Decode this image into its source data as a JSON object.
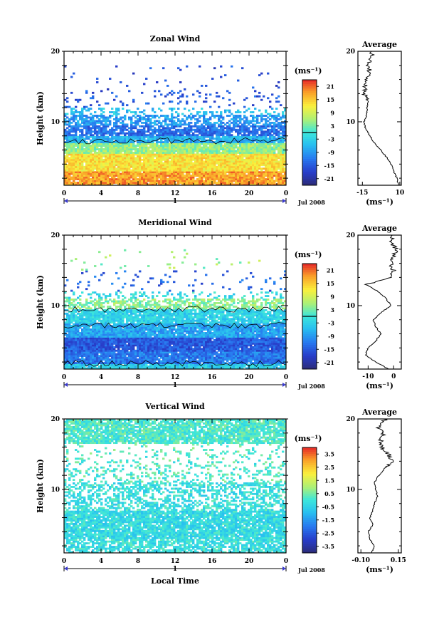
{
  "chart_data": [
    {
      "type": "heatmap",
      "title": "Zonal Wind",
      "ylabel": "Height (km)",
      "x_ticks": [
        "0",
        "4",
        "8",
        "12",
        "16",
        "20",
        "0"
      ],
      "y_tick_labels": [
        "10",
        "20"
      ],
      "xlim": [
        0,
        24
      ],
      "ylim": [
        1,
        20
      ],
      "day_label": "1",
      "date_label": "Jul 2008",
      "colorbar": {
        "unit_label": "(ms⁻¹)",
        "ticks": [
          "21",
          "15",
          "9",
          "3",
          "-3",
          "-9",
          "-15",
          "-21"
        ],
        "range": [
          -24,
          24
        ],
        "zero_line": 0
      },
      "layers": [
        {
          "y0": 1.0,
          "y1": 3.0,
          "value": 18,
          "fill": 0.97
        },
        {
          "y0": 3.0,
          "y1": 5.5,
          "value": 13,
          "fill": 0.97
        },
        {
          "y0": 5.5,
          "y1": 7.0,
          "value": 5,
          "fill": 0.95
        },
        {
          "y0": 7.0,
          "y1": 8.0,
          "value": -7,
          "fill": 0.9
        },
        {
          "y0": 8.0,
          "y1": 9.5,
          "value": -13,
          "fill": 0.8
        },
        {
          "y0": 9.5,
          "y1": 11.0,
          "value": -9,
          "fill": 0.6
        },
        {
          "y0": 11.0,
          "y1": 12.0,
          "value": -5,
          "fill": 0.3
        },
        {
          "y0": 12.0,
          "y1": 14.5,
          "value": -15,
          "fill": 0.12
        },
        {
          "y0": 14.5,
          "y1": 18.0,
          "value": -16,
          "fill": 0.03
        }
      ],
      "contour_heights": [
        7.3
      ],
      "average": {
        "title": "Average",
        "xlabel": "(ms⁻¹)",
        "x_ticks": [
          "-15",
          "10"
        ],
        "xlim": [
          -18,
          11
        ],
        "heights": [
          1,
          2,
          3,
          4,
          5,
          6,
          7,
          8,
          9,
          10,
          11,
          12,
          13,
          14,
          15,
          16,
          17,
          18,
          19,
          20
        ],
        "values": [
          9,
          8,
          6,
          4,
          1,
          -3,
          -7,
          -10,
          -13,
          -14,
          -12,
          -12,
          -11,
          -14,
          -13,
          -13,
          -10,
          -11,
          -9,
          -9
        ]
      }
    },
    {
      "type": "heatmap",
      "title": "Meridional Wind",
      "ylabel": "Height (km)",
      "x_ticks": [
        "0",
        "4",
        "8",
        "12",
        "16",
        "20",
        "0"
      ],
      "y_tick_labels": [
        "10",
        "20"
      ],
      "xlim": [
        0,
        24
      ],
      "ylim": [
        1,
        20
      ],
      "day_label": "1",
      "date_label": "Jul 2008",
      "colorbar": {
        "unit_label": "(ms⁻¹)",
        "ticks": [
          "21",
          "15",
          "9",
          "3",
          "-3",
          "-9",
          "-15",
          "-21"
        ],
        "range": [
          -24,
          24
        ],
        "zero_line": 0
      },
      "layers": [
        {
          "y0": 1.0,
          "y1": 1.8,
          "value": -4,
          "fill": 0.97
        },
        {
          "y0": 1.8,
          "y1": 3.5,
          "value": -12,
          "fill": 0.97
        },
        {
          "y0": 3.5,
          "y1": 5.5,
          "value": -15,
          "fill": 0.97
        },
        {
          "y0": 5.5,
          "y1": 7.5,
          "value": -8,
          "fill": 0.95
        },
        {
          "y0": 7.5,
          "y1": 9.5,
          "value": -3,
          "fill": 0.9
        },
        {
          "y0": 9.5,
          "y1": 11.0,
          "value": 4,
          "fill": 0.6
        },
        {
          "y0": 11.0,
          "y1": 12.0,
          "value": -2,
          "fill": 0.3
        },
        {
          "y0": 12.0,
          "y1": 15.0,
          "value": -14,
          "fill": 0.06
        },
        {
          "y0": 15.0,
          "y1": 18.0,
          "value": 5,
          "fill": 0.02
        }
      ],
      "contour_heights": [
        1.8,
        7.2,
        9.5
      ],
      "average": {
        "title": "Average",
        "xlabel": "(ms⁻¹)",
        "x_ticks": [
          "-10",
          "0"
        ],
        "xlim": [
          -14,
          3
        ],
        "heights": [
          1,
          2,
          3,
          4,
          5,
          6,
          7,
          8,
          9,
          10,
          11,
          12,
          13,
          14,
          15,
          16,
          17,
          18,
          19,
          20
        ],
        "values": [
          -2,
          -7,
          -11,
          -10,
          -7,
          -5,
          -7,
          -8,
          -5,
          -1,
          -3,
          -6,
          -11,
          -1,
          0,
          -1,
          0,
          1,
          -1,
          0
        ]
      }
    },
    {
      "type": "heatmap",
      "title": "Vertical Wind",
      "ylabel": "Height (km)",
      "xlabel": "Local Time",
      "x_ticks": [
        "0",
        "4",
        "8",
        "12",
        "16",
        "20",
        "0"
      ],
      "y_tick_labels": [
        "10",
        "20"
      ],
      "xlim": [
        0,
        24
      ],
      "ylim": [
        1,
        20
      ],
      "day_label": "1",
      "date_label": "Jul 2008",
      "colorbar": {
        "unit_label": "(ms⁻¹)",
        "ticks": [
          "3.5",
          "2.5",
          "1.5",
          "0.5",
          "-0.5",
          "-1.5",
          "-2.5",
          "-3.5"
        ],
        "range": [
          -4,
          4
        ],
        "zero_line": null
      },
      "layers": [
        {
          "y0": 1.0,
          "y1": 3.0,
          "value": -0.2,
          "fill": 0.75
        },
        {
          "y0": 3.0,
          "y1": 7.0,
          "value": -0.3,
          "fill": 0.9
        },
        {
          "y0": 7.0,
          "y1": 11.0,
          "value": -0.2,
          "fill": 0.55
        },
        {
          "y0": 11.0,
          "y1": 14.0,
          "value": 0.1,
          "fill": 0.25
        },
        {
          "y0": 14.0,
          "y1": 16.5,
          "value": 0.2,
          "fill": 0.12
        },
        {
          "y0": 16.5,
          "y1": 20.0,
          "value": 0.1,
          "fill": 0.85
        }
      ],
      "contour_heights": [],
      "average": {
        "title": "Average",
        "xlabel": "(ms⁻¹)",
        "x_ticks": [
          "-0.10",
          "0.15"
        ],
        "xlim": [
          -0.12,
          0.17
        ],
        "heights": [
          1,
          2,
          3,
          4,
          5,
          6,
          7,
          8,
          9,
          10,
          11,
          12,
          13,
          14,
          15,
          16,
          17,
          18,
          19,
          20
        ],
        "values": [
          -0.03,
          -0.01,
          -0.04,
          -0.05,
          -0.02,
          -0.04,
          -0.02,
          -0.01,
          0.01,
          0.0,
          -0.01,
          0.02,
          0.06,
          0.12,
          0.08,
          0.04,
          0.03,
          0.05,
          0.01,
          0.07
        ]
      }
    }
  ]
}
